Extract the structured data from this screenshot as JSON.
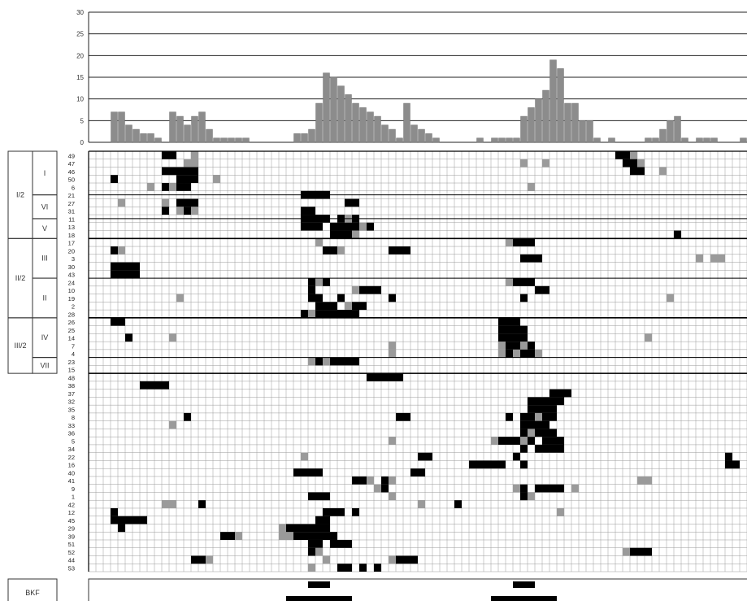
{
  "chart_data": {
    "type": "bar",
    "histogram": {
      "ylim": [
        0,
        30
      ],
      "yticks": [
        "0",
        "5",
        "10",
        "15",
        "20",
        "25",
        "30"
      ],
      "values": [
        0,
        0,
        0,
        7,
        7,
        4,
        3,
        2,
        2,
        1,
        0,
        7,
        6,
        4,
        6,
        7,
        3,
        1,
        1,
        1,
        1,
        1,
        0,
        0,
        0,
        0,
        0,
        0,
        2,
        2,
        3,
        9,
        16,
        15,
        13,
        11,
        9,
        8,
        7,
        6,
        4,
        3,
        1,
        9,
        4,
        3,
        2,
        1,
        0,
        0,
        0,
        0,
        0,
        1,
        0,
        1,
        1,
        1,
        1,
        6,
        8,
        10,
        12,
        19,
        17,
        9,
        9,
        5,
        5,
        1,
        0,
        1,
        0,
        0,
        0,
        0,
        1,
        1,
        3,
        5,
        6,
        1,
        0,
        1,
        1,
        1,
        0,
        0,
        0,
        1,
        0,
        1,
        3,
        1
      ]
    },
    "groups": [
      {
        "label": "I/2",
        "start": 0,
        "end": 22
      },
      {
        "label": "II/2",
        "start": 22,
        "end": 42
      },
      {
        "label": "III/2",
        "start": 42,
        "end": 56
      }
    ],
    "subgroups": [
      {
        "label": "I",
        "start": 0,
        "end": 11
      },
      {
        "label": "VI",
        "start": 11,
        "end": 17
      },
      {
        "label": "V",
        "start": 17,
        "end": 22
      },
      {
        "label": "III",
        "start": 22,
        "end": 32
      },
      {
        "label": "II",
        "start": 32,
        "end": 42
      },
      {
        "label": "IV",
        "start": 42,
        "end": 52
      },
      {
        "label": "VII",
        "start": 52,
        "end": 56
      }
    ],
    "row_labels": [
      "49",
      "47",
      "46",
      "50",
      "6",
      "21",
      "27",
      "31",
      "11",
      "13",
      "18",
      "17",
      "20",
      "3",
      "30",
      "43",
      "24",
      "10",
      "19",
      "2",
      "28",
      "26",
      "25",
      "14",
      "7",
      "4",
      "23",
      "15",
      "48",
      "38",
      "37",
      "32",
      "35",
      "8",
      "33",
      "36",
      "5",
      "34",
      "22",
      "16",
      "40",
      "41",
      "9",
      "1",
      "42",
      "12",
      "45",
      "29",
      "39",
      "51",
      "52",
      "44",
      "53"
    ],
    "columns": 90,
    "cells": [
      [
        "b",
        0,
        10,
        11
      ],
      [
        "g",
        0,
        14
      ],
      [
        "b",
        0,
        72,
        73
      ],
      [
        "g",
        0,
        74
      ],
      [
        "g",
        1,
        13,
        14
      ],
      [
        "g",
        1,
        59
      ],
      [
        "g",
        1,
        62
      ],
      [
        "b",
        1,
        73,
        74
      ],
      [
        "g",
        1,
        75
      ],
      [
        "b",
        2,
        10,
        11
      ],
      [
        "b",
        2,
        12,
        14
      ],
      [
        "b",
        2,
        74,
        75
      ],
      [
        "g",
        2,
        78
      ],
      [
        "b",
        3,
        3
      ],
      [
        "b",
        3,
        12,
        14
      ],
      [
        "g",
        3,
        17
      ],
      [
        "g",
        4,
        8
      ],
      [
        "b",
        4,
        10
      ],
      [
        "g",
        4,
        11
      ],
      [
        "b",
        4,
        12,
        13
      ],
      [
        "g",
        4,
        60
      ],
      [
        "b",
        5,
        29,
        32
      ],
      [
        "g",
        6,
        4
      ],
      [
        "g",
        6,
        10
      ],
      [
        "b",
        6,
        12,
        14
      ],
      [
        "b",
        6,
        35,
        36
      ],
      [
        "b",
        7,
        10
      ],
      [
        "g",
        7,
        12
      ],
      [
        "b",
        7,
        13
      ],
      [
        "g",
        7,
        14
      ],
      [
        "b",
        7,
        29,
        30
      ],
      [
        "b",
        8,
        29,
        32
      ],
      [
        "b",
        8,
        34
      ],
      [
        "g",
        8,
        35
      ],
      [
        "b",
        8,
        36
      ],
      [
        "b",
        9,
        29,
        31
      ],
      [
        "b",
        9,
        33,
        36
      ],
      [
        "g",
        9,
        37
      ],
      [
        "b",
        9,
        38
      ],
      [
        "b",
        10,
        33,
        35
      ],
      [
        "g",
        10,
        36
      ],
      [
        "b",
        10,
        80
      ],
      [
        "g",
        11,
        31
      ],
      [
        "g",
        11,
        57
      ],
      [
        "b",
        11,
        58,
        60
      ],
      [
        "b",
        12,
        3
      ],
      [
        "g",
        12,
        4
      ],
      [
        "b",
        12,
        32,
        33
      ],
      [
        "g",
        12,
        34
      ],
      [
        "b",
        12,
        41,
        43
      ],
      [
        "b",
        13,
        59,
        61
      ],
      [
        "g",
        13,
        83
      ],
      [
        "g",
        13,
        85,
        86
      ],
      [
        "b",
        14,
        3,
        6
      ],
      [
        "b",
        15,
        3,
        6
      ],
      [
        "b",
        16,
        30
      ],
      [
        "g",
        16,
        31
      ],
      [
        "b",
        16,
        32
      ],
      [
        "g",
        16,
        57
      ],
      [
        "b",
        16,
        58,
        60
      ],
      [
        "b",
        17,
        30
      ],
      [
        "g",
        17,
        36
      ],
      [
        "b",
        17,
        37,
        39
      ],
      [
        "b",
        17,
        61,
        62
      ],
      [
        "g",
        18,
        12
      ],
      [
        "b",
        18,
        30,
        31
      ],
      [
        "b",
        18,
        34
      ],
      [
        "b",
        18,
        41
      ],
      [
        "b",
        18,
        59
      ],
      [
        "g",
        18,
        79
      ],
      [
        "b",
        19,
        31,
        33
      ],
      [
        "g",
        19,
        35
      ],
      [
        "b",
        19,
        36,
        37
      ],
      [
        "b",
        20,
        29
      ],
      [
        "g",
        20,
        30
      ],
      [
        "b",
        20,
        31,
        36
      ],
      [
        "b",
        21,
        3,
        4
      ],
      [
        "b",
        21,
        56,
        58
      ],
      [
        "b",
        22,
        56,
        59
      ],
      [
        "b",
        23,
        5
      ],
      [
        "g",
        23,
        11
      ],
      [
        "b",
        23,
        56,
        59
      ],
      [
        "g",
        23,
        76
      ],
      [
        "g",
        24,
        41
      ],
      [
        "g",
        24,
        56
      ],
      [
        "b",
        24,
        57,
        58
      ],
      [
        "g",
        24,
        59
      ],
      [
        "b",
        24,
        60
      ],
      [
        "g",
        25,
        41
      ],
      [
        "g",
        25,
        56
      ],
      [
        "b",
        25,
        57
      ],
      [
        "g",
        25,
        58
      ],
      [
        "b",
        25,
        59,
        60
      ],
      [
        "g",
        25,
        61
      ],
      [
        "g",
        26,
        30
      ],
      [
        "b",
        26,
        31
      ],
      [
        "g",
        26,
        32
      ],
      [
        "b",
        26,
        33,
        36
      ],
      [
        "b",
        28,
        38,
        42
      ],
      [
        "b",
        29,
        7,
        10
      ],
      [
        "b",
        30,
        63,
        65
      ],
      [
        "b",
        31,
        60,
        64
      ],
      [
        "b",
        32,
        60,
        63
      ],
      [
        "b",
        33,
        13
      ],
      [
        "b",
        33,
        42,
        43
      ],
      [
        "b",
        33,
        57
      ],
      [
        "b",
        33,
        59,
        60
      ],
      [
        "g",
        33,
        61
      ],
      [
        "b",
        33,
        62,
        63
      ],
      [
        "g",
        34,
        11
      ],
      [
        "b",
        34,
        59,
        62
      ],
      [
        "b",
        35,
        59
      ],
      [
        "g",
        35,
        60
      ],
      [
        "b",
        35,
        61,
        63
      ],
      [
        "g",
        36,
        41
      ],
      [
        "g",
        36,
        55
      ],
      [
        "b",
        36,
        56,
        58
      ],
      [
        "g",
        36,
        59
      ],
      [
        "b",
        36,
        60
      ],
      [
        "b",
        36,
        62,
        64
      ],
      [
        "b",
        37,
        59
      ],
      [
        "b",
        37,
        61,
        64
      ],
      [
        "g",
        38,
        29
      ],
      [
        "b",
        38,
        45,
        46
      ],
      [
        "b",
        38,
        58
      ],
      [
        "b",
        38,
        87
      ],
      [
        "b",
        39,
        52,
        56
      ],
      [
        "b",
        39,
        59
      ],
      [
        "b",
        39,
        87,
        88
      ],
      [
        "b",
        40,
        28,
        31
      ],
      [
        "b",
        40,
        44,
        45
      ],
      [
        "b",
        41,
        36,
        37
      ],
      [
        "g",
        41,
        38
      ],
      [
        "b",
        41,
        40
      ],
      [
        "g",
        41,
        41
      ],
      [
        "g",
        41,
        75
      ],
      [
        "g",
        41,
        76
      ],
      [
        "g",
        42,
        39
      ],
      [
        "b",
        42,
        40
      ],
      [
        "g",
        42,
        58
      ],
      [
        "b",
        42,
        59
      ],
      [
        "b",
        42,
        61,
        64
      ],
      [
        "g",
        42,
        66
      ],
      [
        "b",
        43,
        30,
        32
      ],
      [
        "g",
        43,
        41
      ],
      [
        "b",
        43,
        59
      ],
      [
        "g",
        43,
        60
      ],
      [
        "g",
        44,
        10,
        11
      ],
      [
        "b",
        44,
        15
      ],
      [
        "g",
        44,
        45
      ],
      [
        "b",
        44,
        50
      ],
      [
        "b",
        45,
        3
      ],
      [
        "b",
        45,
        32,
        34
      ],
      [
        "b",
        45,
        36
      ],
      [
        "g",
        45,
        64
      ],
      [
        "b",
        46,
        3,
        7
      ],
      [
        "b",
        46,
        31,
        32
      ],
      [
        "b",
        47,
        4
      ],
      [
        "g",
        47,
        26
      ],
      [
        "b",
        47,
        27,
        32
      ],
      [
        "b",
        48,
        18,
        19
      ],
      [
        "g",
        48,
        20
      ],
      [
        "g",
        48,
        26,
        27
      ],
      [
        "b",
        48,
        28,
        33
      ],
      [
        "b",
        49,
        30,
        31
      ],
      [
        "b",
        49,
        33,
        35
      ],
      [
        "b",
        50,
        30
      ],
      [
        "g",
        50,
        31
      ],
      [
        "g",
        50,
        73
      ],
      [
        "b",
        50,
        74,
        76
      ],
      [
        "b",
        51,
        14,
        15
      ],
      [
        "g",
        51,
        16
      ],
      [
        "g",
        51,
        32
      ],
      [
        "g",
        51,
        41
      ],
      [
        "b",
        51,
        42,
        44
      ],
      [
        "g",
        52,
        30
      ],
      [
        "b",
        52,
        34,
        35
      ],
      [
        "b",
        52,
        37
      ],
      [
        "b",
        52,
        39
      ]
    ],
    "bkf": {
      "label": "BKF",
      "bars": [
        {
          "row": 0,
          "start": 30,
          "end": 32
        },
        {
          "row": 1,
          "start": 27,
          "end": 35
        },
        {
          "row": 0,
          "start": 58,
          "end": 60
        },
        {
          "row": 1,
          "start": 55,
          "end": 63
        }
      ]
    }
  }
}
